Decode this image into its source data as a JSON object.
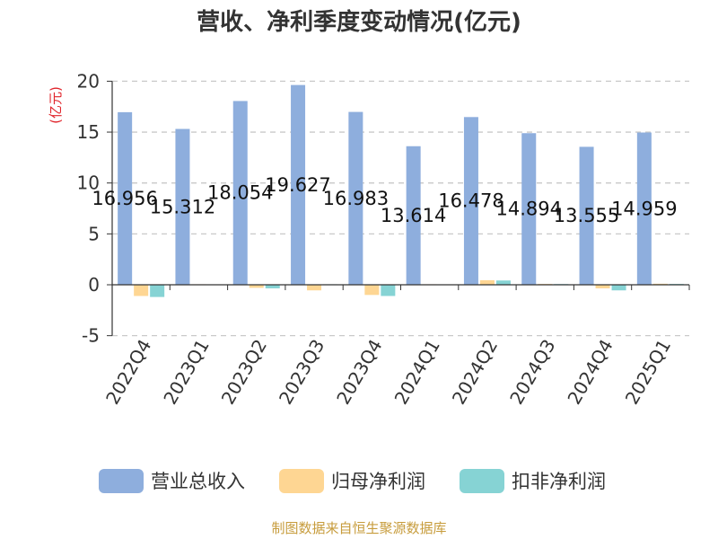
{
  "chart_data": {
    "type": "bar",
    "title": "营收、净利季度变动情况(亿元)",
    "ylabel": "(亿元)",
    "xlabel": "",
    "ylim": [
      -5,
      20
    ],
    "yticks": [
      -5,
      0,
      5,
      10,
      15,
      20
    ],
    "grid": true,
    "legend_position": "bottom",
    "categories": [
      "2022Q4",
      "2023Q1",
      "2023Q2",
      "2023Q3",
      "2023Q4",
      "2024Q1",
      "2024Q2",
      "2024Q3",
      "2024Q4",
      "2025Q1"
    ],
    "series": [
      {
        "name": "营业总收入",
        "color": "#8eaedd",
        "values": [
          16.956,
          15.312,
          18.054,
          19.627,
          16.983,
          13.614,
          16.478,
          14.894,
          13.555,
          14.959
        ],
        "labels": [
          "16.956",
          "15.312",
          "18.054",
          "19.627",
          "16.983",
          "13.614",
          "16.478",
          "14.894",
          "13.555",
          "14.959"
        ]
      },
      {
        "name": "归母净利润",
        "color": "#fed693",
        "values": [
          -1.1,
          0.05,
          -0.3,
          -0.55,
          -1.0,
          0.05,
          0.45,
          0.08,
          -0.35,
          0.1
        ]
      },
      {
        "name": "扣非净利润",
        "color": "#86d3d4",
        "values": [
          -1.2,
          0.04,
          -0.35,
          0.05,
          -1.1,
          0.04,
          0.42,
          0.07,
          -0.55,
          0.08
        ]
      }
    ],
    "source": "制图数据来自恒生聚源数据库"
  }
}
